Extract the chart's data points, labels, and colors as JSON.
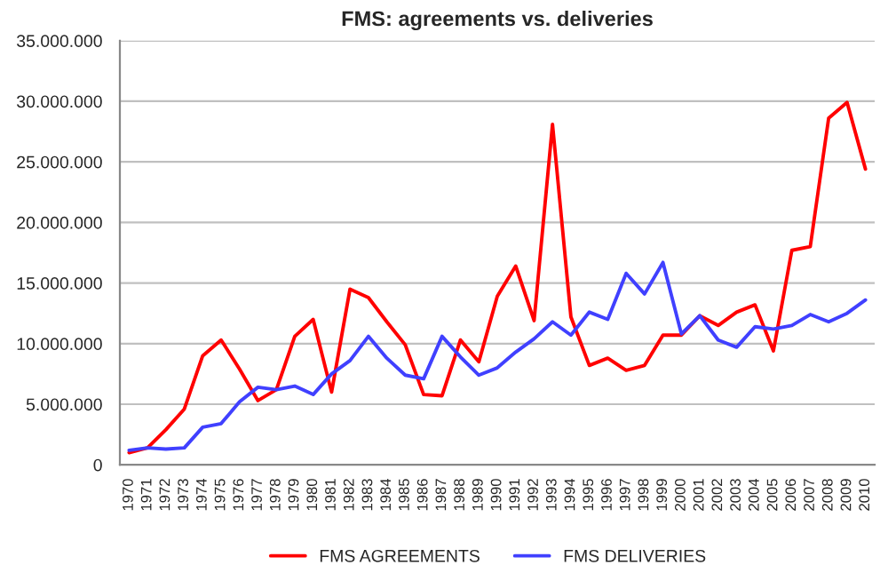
{
  "chart_data": {
    "type": "line",
    "title": "FMS: agreements vs. deliveries",
    "categories": [
      "1970",
      "1971",
      "1972",
      "1973",
      "1974",
      "1975",
      "1976",
      "1977",
      "1978",
      "1979",
      "1980",
      "1981",
      "1982",
      "1983",
      "1984",
      "1985",
      "1986",
      "1987",
      "1988",
      "1989",
      "1990",
      "1991",
      "1992",
      "1993",
      "1994",
      "1995",
      "1996",
      "1997",
      "1998",
      "1999",
      "2000",
      "2001",
      "2002",
      "2003",
      "2004",
      "2005",
      "2006",
      "2007",
      "2008",
      "2009",
      "2010"
    ],
    "series": [
      {
        "name": "FMS AGREEMENTS",
        "color": "#ff0000",
        "values": [
          1000000,
          1400000,
          2900000,
          4600000,
          9000000,
          10300000,
          7900000,
          5300000,
          6200000,
          10600000,
          12000000,
          6000000,
          14500000,
          13800000,
          11800000,
          9900000,
          5800000,
          5700000,
          10300000,
          8500000,
          13900000,
          16400000,
          11900000,
          28100000,
          12200000,
          8200000,
          8800000,
          7800000,
          8200000,
          10700000,
          10700000,
          12300000,
          11500000,
          12600000,
          13200000,
          9400000,
          17700000,
          18000000,
          28600000,
          29900000,
          24400000
        ]
      },
      {
        "name": "FMS DELIVERIES",
        "color": "#4040ff",
        "values": [
          1200000,
          1400000,
          1300000,
          1400000,
          3100000,
          3400000,
          5200000,
          6400000,
          6200000,
          6500000,
          5800000,
          7500000,
          8600000,
          10600000,
          8800000,
          7400000,
          7100000,
          10600000,
          8900000,
          7400000,
          8000000,
          9300000,
          10400000,
          11800000,
          10700000,
          12600000,
          12000000,
          15800000,
          14100000,
          16700000,
          10800000,
          12300000,
          10300000,
          9700000,
          11400000,
          11200000,
          11500000,
          12400000,
          11800000,
          12500000,
          13600000
        ]
      }
    ],
    "ylim": [
      0,
      35000000
    ],
    "yticks": [
      {
        "value": 0,
        "label": "0"
      },
      {
        "value": 5000000,
        "label": "5.000.000"
      },
      {
        "value": 10000000,
        "label": "10.000.000"
      },
      {
        "value": 15000000,
        "label": "15.000.000"
      },
      {
        "value": 20000000,
        "label": "20.000.000"
      },
      {
        "value": 25000000,
        "label": "25.000.000"
      },
      {
        "value": 30000000,
        "label": "30.000.000"
      },
      {
        "value": 35000000,
        "label": "35.000.000"
      }
    ],
    "grid": "y",
    "legend": "bottom",
    "marker": "none",
    "line_style": "solid"
  }
}
